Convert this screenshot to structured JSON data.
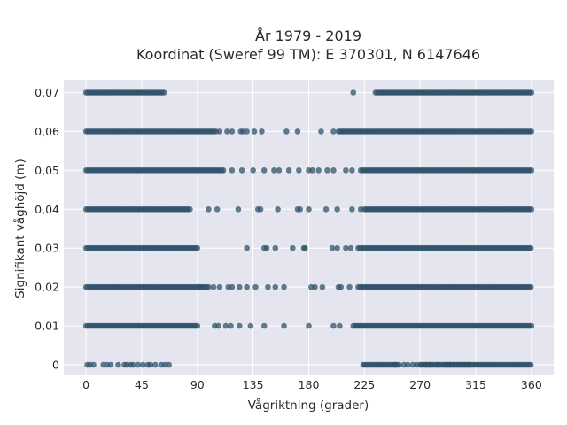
{
  "chart_data": {
    "type": "scatter",
    "title_line1": "År 1979 - 2019",
    "title_line2": "Koordinat (Sweref 99 TM): E 370301, N 6147646",
    "xlabel": "Vågriktning (grader)",
    "ylabel": "Signifikant våghöjd (m)",
    "xlim": [
      -18,
      378
    ],
    "ylim": [
      -0.0025,
      0.0733
    ],
    "x_ticks": [
      0,
      45,
      90,
      135,
      180,
      225,
      270,
      315,
      360
    ],
    "y_ticks": [
      0,
      0.01,
      0.02,
      0.03,
      0.04,
      0.05,
      0.06,
      0.07
    ],
    "y_tick_labels": [
      "0",
      "0,01",
      "0,02",
      "0,03",
      "0,04",
      "0,05",
      "0,06",
      "0,07"
    ],
    "grid": true,
    "colors": {
      "marker": "#2f5169",
      "background": "#e5e5f0",
      "grid": "#ffffff"
    },
    "series": [
      {
        "y": 0.07,
        "segments": [
          [
            0,
            64
          ],
          [
            234,
            360
          ]
        ],
        "points": [
          216
        ]
      },
      {
        "y": 0.06,
        "segments": [
          [
            0,
            105
          ],
          [
            204,
            360
          ]
        ],
        "points": [
          108,
          114,
          118,
          125,
          127,
          130,
          136,
          142,
          162,
          171,
          190,
          200
        ]
      },
      {
        "y": 0.05,
        "segments": [
          [
            0,
            112
          ],
          [
            222,
            360
          ]
        ],
        "points": [
          118,
          126,
          135,
          144,
          152,
          156,
          164,
          172,
          180,
          183,
          188,
          195,
          200,
          210,
          215
        ]
      },
      {
        "y": 0.04,
        "segments": [
          [
            0,
            85
          ],
          [
            225,
            360
          ]
        ],
        "points": [
          99,
          106,
          123,
          139,
          141,
          155,
          171,
          173,
          180,
          194,
          203,
          215,
          222
        ]
      },
      {
        "y": 0.03,
        "segments": [
          [
            0,
            90
          ],
          [
            220,
            360
          ]
        ],
        "points": [
          130,
          144,
          146,
          153,
          167,
          176,
          177,
          199,
          203,
          210,
          214
        ]
      },
      {
        "y": 0.02,
        "segments": [
          [
            0,
            100
          ],
          [
            220,
            360
          ]
        ],
        "points": [
          92,
          103,
          108,
          115,
          118,
          124,
          130,
          137,
          147,
          153,
          160,
          182,
          185,
          191,
          204,
          206,
          213
        ]
      },
      {
        "y": 0.01,
        "segments": [
          [
            0,
            90
          ],
          [
            216,
            360
          ]
        ],
        "points": [
          104,
          107,
          113,
          117,
          124,
          133,
          144,
          160,
          180,
          200,
          205
        ]
      },
      {
        "y": 0,
        "segments": [
          [
            224,
            252
          ],
          [
            271,
            360
          ]
        ],
        "points": [
          1,
          3,
          6,
          14,
          17,
          20,
          26,
          31,
          33,
          36,
          38,
          42,
          46,
          50,
          52,
          56,
          61,
          64,
          67,
          250,
          253,
          257,
          260,
          264,
          267,
          270,
          275,
          278,
          284,
          291,
          294,
          297,
          300,
          303,
          306,
          309
        ]
      }
    ]
  }
}
